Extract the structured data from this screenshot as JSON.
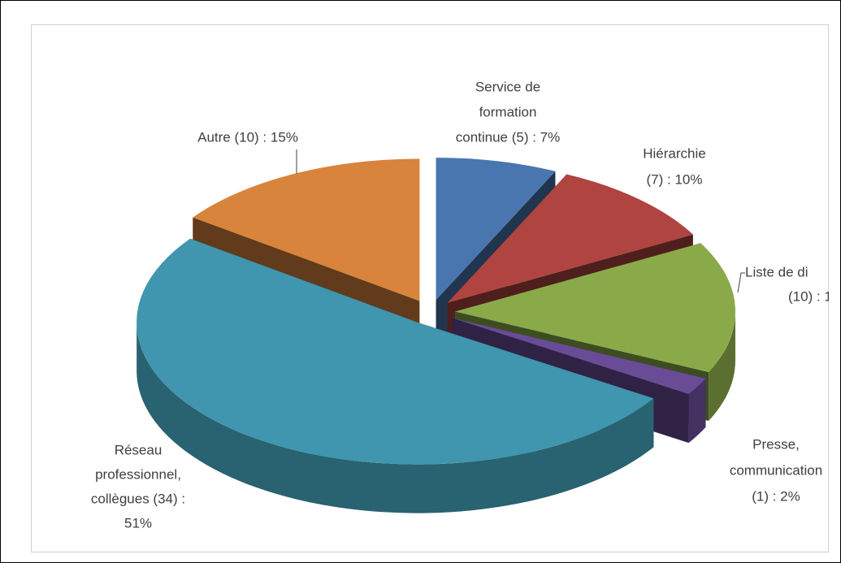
{
  "chart_data": {
    "type": "pie3d",
    "categories": [
      [
        "Service de",
        "formation",
        "continue (5) : 7%"
      ],
      [
        "Hiérarchie",
        "(7) : 10%"
      ],
      [
        "Liste de di",
        "(10) : 1"
      ],
      [
        "Presse,",
        "communication",
        "(1) :  2%"
      ],
      [
        "Réseau",
        "professionnel,",
        "collègues (34) :",
        "51%"
      ],
      [
        "Autre (10) : 15%"
      ]
    ],
    "values": [
      7,
      10,
      15,
      2,
      51,
      15
    ],
    "colors": [
      "#4a76b0",
      "#b04440",
      "#8aaa4a",
      "#6a4c96",
      "#3f96ae",
      "#d8843c"
    ]
  }
}
